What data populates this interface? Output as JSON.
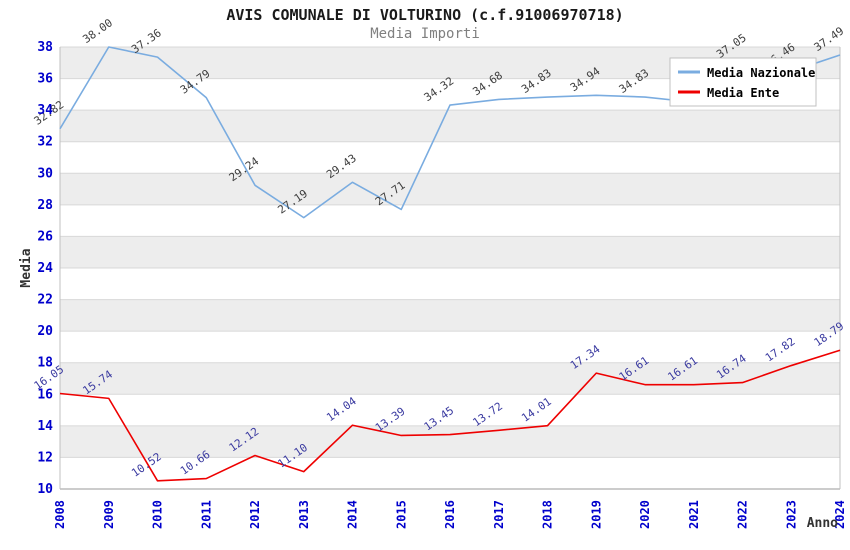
{
  "header": {
    "title": "AVIS COMUNALE DI VOLTURINO (c.f.91006970718)",
    "subtitle": "Media Importi"
  },
  "axes": {
    "y_title": "Media",
    "x_title": "Anno",
    "y_ticks": [
      "38",
      "36",
      "34",
      "32",
      "30",
      "28",
      "26",
      "24",
      "22",
      "20",
      "18",
      "16",
      "14",
      "12",
      "10"
    ],
    "x_ticks": [
      "2008",
      "2009",
      "2010",
      "2011",
      "2012",
      "2013",
      "2014",
      "2015",
      "2016",
      "2017",
      "2018",
      "2019",
      "2020",
      "2021",
      "2022",
      "2023",
      "2024"
    ]
  },
  "legend": {
    "items": [
      {
        "label": "Media Nazionale",
        "color": "#7AACE0"
      },
      {
        "label": "Media Ente",
        "color": "#EE0000"
      }
    ]
  },
  "colors": {
    "tick_label": "#0000CC",
    "band_gray": "#EDEDED",
    "gridline": "#D8D8D8",
    "plot_border": "#C0C0C0",
    "axis_line": "#999999",
    "legend_bg": "#FFFFFF",
    "legend_border": "#C0C0C0",
    "nazionale_label": "#3D3D3D",
    "ente_label": "#3A3AA0"
  },
  "chart_data": {
    "type": "line",
    "title": "AVIS COMUNALE DI VOLTURINO (c.f.91006970718)",
    "subtitle": "Media Importi",
    "xlabel": "Anno",
    "ylabel": "Media",
    "x": [
      2008,
      2009,
      2010,
      2011,
      2012,
      2013,
      2014,
      2015,
      2016,
      2017,
      2018,
      2019,
      2020,
      2021,
      2022,
      2023,
      2024
    ],
    "ylim": [
      10,
      38
    ],
    "grid": true,
    "band_rows_gray": [
      [
        36,
        38
      ],
      [
        32,
        34
      ],
      [
        28,
        30
      ],
      [
        24,
        26
      ],
      [
        20,
        22
      ],
      [
        16,
        18
      ],
      [
        12,
        14
      ]
    ],
    "legend_position": "top-right",
    "series": [
      {
        "name": "Media Nazionale",
        "color": "#7AACE0",
        "label_color": "#3D3D3D",
        "values": [
          32.82,
          38.0,
          37.36,
          34.79,
          29.24,
          27.19,
          29.43,
          27.71,
          34.32,
          34.68,
          34.83,
          34.94,
          34.83,
          34.5,
          37.05,
          36.46,
          37.49
        ],
        "labels": [
          "32.82",
          "38.00",
          "37.36",
          "34.79",
          "29.24",
          "27.19",
          "29.43",
          "27.71",
          "34.32",
          "34.68",
          "34.83",
          "34.94",
          "34.83",
          null,
          "37.05",
          "36.46",
          "37.49"
        ],
        "note": "2021 label hidden behind legend box; value estimated from line path"
      },
      {
        "name": "Media Ente",
        "color": "#EE0000",
        "label_color": "#3A3AA0",
        "values": [
          16.05,
          15.74,
          10.52,
          10.66,
          12.12,
          11.1,
          14.04,
          13.39,
          13.45,
          13.72,
          14.01,
          17.34,
          16.61,
          16.61,
          16.74,
          17.82,
          18.79
        ],
        "labels": [
          "16.05",
          "15.74",
          "10.52",
          "10.66",
          "12.12",
          "11.10",
          "14.04",
          "13.39",
          "13.45",
          "13.72",
          "14.01",
          "17.34",
          "16.61",
          "16.61",
          "16.74",
          "17.82",
          "18.79"
        ]
      }
    ]
  }
}
